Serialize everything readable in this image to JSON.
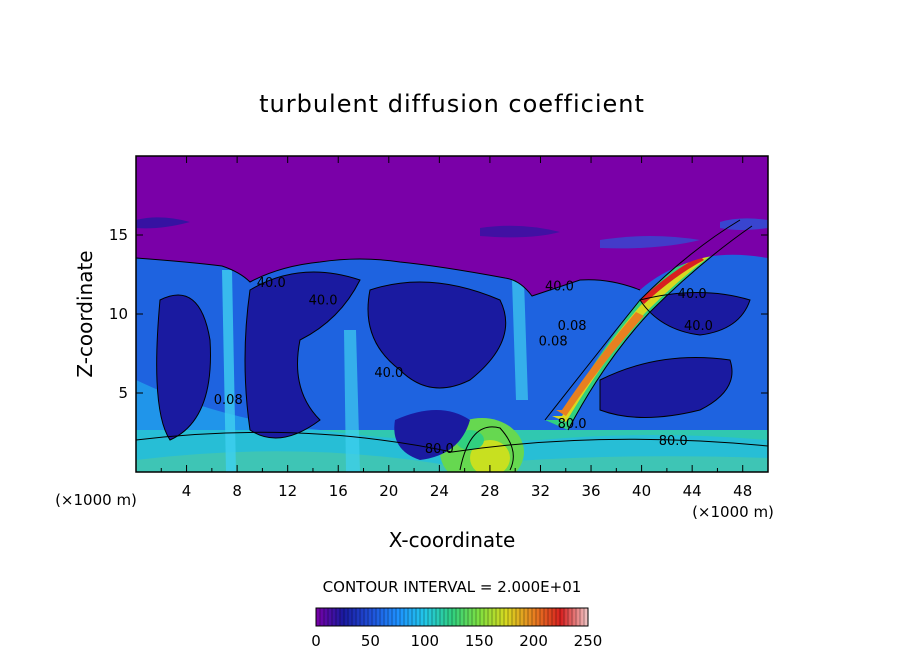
{
  "chart_data": {
    "type": "heatmap",
    "title": "turbulent diffusion coefficient",
    "xlabel": "X-coordinate",
    "ylabel": "Z-coordinate",
    "xlim": [
      0,
      50
    ],
    "ylim": [
      0,
      20
    ],
    "x_ticks": [
      "4",
      "8",
      "12",
      "16",
      "20",
      "24",
      "28",
      "32",
      "36",
      "40",
      "44",
      "48"
    ],
    "y_ticks": [
      "5",
      "10",
      "15"
    ],
    "x_unit_left": "(×1000 m)",
    "x_unit_right": "(×1000 m)",
    "contour_interval_text": "CONTOUR INTERVAL = 2.000E+01",
    "colorbar": {
      "ticks": [
        "0",
        "50",
        "100",
        "150",
        "200",
        "250"
      ],
      "range": [
        0,
        250
      ],
      "colors": [
        "#7a00a8",
        "#1a1aa0",
        "#1f4fd8",
        "#1e90ff",
        "#22c8e8",
        "#30d080",
        "#7ee040",
        "#d8d820",
        "#e88020",
        "#d82020",
        "#f0c8c8"
      ]
    },
    "contour_labels": [
      {
        "text": "40.0",
        "x": 10.7,
        "z": 11.7
      },
      {
        "text": "40.0",
        "x": 14.8,
        "z": 10.6
      },
      {
        "text": "40.0",
        "x": 20.0,
        "z": 6.0
      },
      {
        "text": "0.08",
        "x": 7.3,
        "z": 4.3
      },
      {
        "text": "80.0",
        "x": 24.0,
        "z": 1.2
      },
      {
        "text": "40.0",
        "x": 33.5,
        "z": 11.5
      },
      {
        "text": "0.08",
        "x": 34.5,
        "z": 9.0
      },
      {
        "text": "0.08",
        "x": 33.0,
        "z": 8.0
      },
      {
        "text": "40.0",
        "x": 44.0,
        "z": 11.0
      },
      {
        "text": "40.0",
        "x": 44.5,
        "z": 9.0
      },
      {
        "text": "80.0",
        "x": 42.5,
        "z": 1.7
      },
      {
        "text": "80.0",
        "x": 34.5,
        "z": 2.8
      }
    ]
  }
}
